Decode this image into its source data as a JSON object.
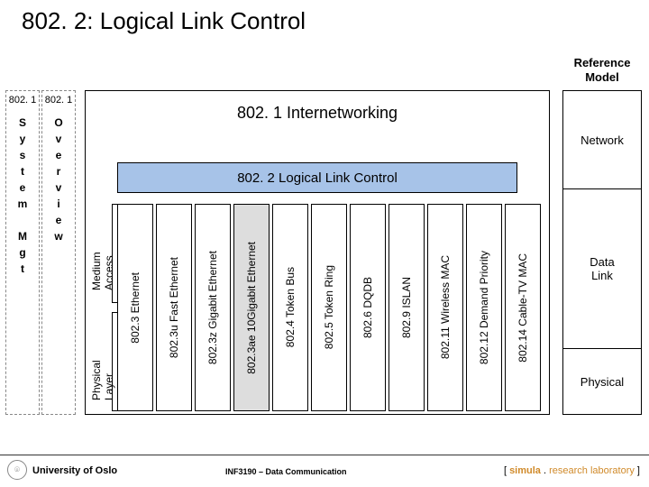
{
  "title": "802. 2: Logical Link Control",
  "reference_model": {
    "header_l1": "Reference",
    "header_l2": "Model",
    "network": "Network",
    "datalink_l1": "Data",
    "datalink_l2": "Link",
    "physical": "Physical"
  },
  "internetworking_title": "802. 1 Internetworking",
  "llc_label": "802. 2 Logical Link Control",
  "side_columns": {
    "sysmgt_head": "802. 1",
    "sysmgt_letters": [
      "S",
      "y",
      "s",
      "t",
      "e",
      "m",
      "",
      "M",
      "g",
      "t"
    ],
    "ovw_head": "802. 1",
    "ovw_letters": [
      "O",
      "v",
      "e",
      "r",
      "v",
      "i",
      "e",
      "w"
    ]
  },
  "brace_labels": {
    "medium_access": "Medium\nAccess",
    "physical_layer": "Physical\nLayer"
  },
  "standards": [
    {
      "label": "802.3 Ethernet",
      "bg": "#ffffff"
    },
    {
      "label": "802.3u Fast Ethernet",
      "bg": "#ffffff"
    },
    {
      "label": "802.3z Gigabit Ethernet",
      "bg": "#ffffff"
    },
    {
      "label": "802.3ae 10Gigabit Ethernet",
      "bg": "#dddddd"
    },
    {
      "label": "802.4 Token Bus",
      "bg": "#ffffff"
    },
    {
      "label": "802.5 Token Ring",
      "bg": "#ffffff"
    },
    {
      "label": "802.6 DQDB",
      "bg": "#ffffff"
    },
    {
      "label": "802.9 ISLAN",
      "bg": "#ffffff"
    },
    {
      "label": "802.11 Wireless MAC",
      "bg": "#ffffff"
    },
    {
      "label": "802.12 Demand Priority",
      "bg": "#ffffff"
    },
    {
      "label": "802.14 Cable-TV MAC",
      "bg": "#ffffff"
    }
  ],
  "layout": {
    "std_col_width": 40,
    "std_col_gap": 3,
    "colors": {
      "llc_bg": "#a7c3e8",
      "dashed": "#888888",
      "border": "#000000"
    }
  },
  "footer": {
    "left": "University of Oslo",
    "mid": "INF3190 – Data Communication",
    "right_bracket_open": "[ ",
    "right_brand1": "simula",
    "right_dot": " . ",
    "right_brand2": "research laboratory",
    "right_bracket_close": " ]"
  }
}
